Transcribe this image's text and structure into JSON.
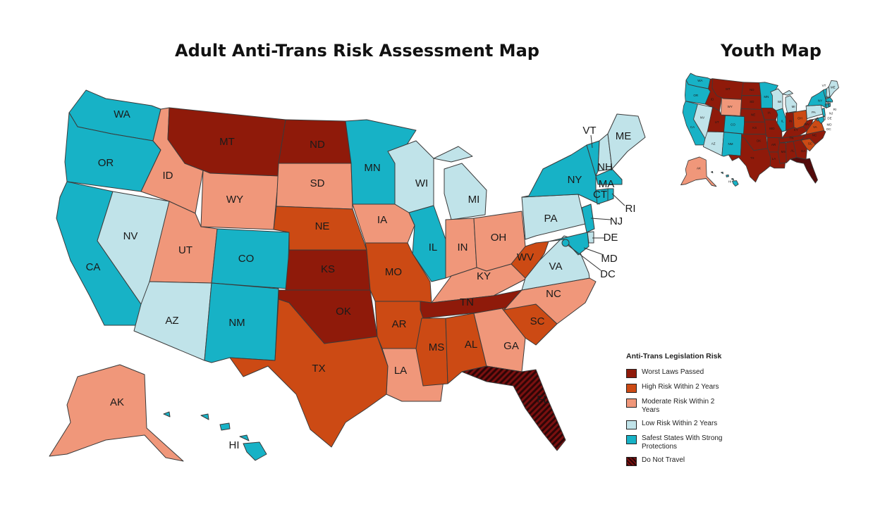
{
  "titles": {
    "main": "Adult Anti-Trans Risk Assessment Map",
    "youth": "Youth Map"
  },
  "colors": {
    "worst": "#8f1a0a",
    "high": "#cc4a14",
    "moderate": "#f0977a",
    "low": "#c0e3e9",
    "safest": "#17b2c6",
    "do_not_travel": "#3a0909",
    "border": "#3a3a3a"
  },
  "legend": {
    "title": "Anti-Trans Legislation Risk",
    "items": [
      {
        "label": "Worst Laws Passed",
        "category": "worst"
      },
      {
        "label": "High Risk Within 2 Years",
        "category": "high"
      },
      {
        "label": "Moderate Risk Within 2 Years",
        "category": "moderate"
      },
      {
        "label": "Low Risk Within 2 Years",
        "category": "low"
      },
      {
        "label": "Safest States With Strong Protections",
        "category": "safest"
      },
      {
        "label": "Do Not Travel",
        "category": "do_not_travel"
      }
    ]
  },
  "adult_map": {
    "states": [
      {
        "abbr": "WA",
        "category": "safest"
      },
      {
        "abbr": "OR",
        "category": "safest"
      },
      {
        "abbr": "CA",
        "category": "safest"
      },
      {
        "abbr": "NV",
        "category": "low"
      },
      {
        "abbr": "ID",
        "category": "moderate"
      },
      {
        "abbr": "MT",
        "category": "worst"
      },
      {
        "abbr": "WY",
        "category": "moderate"
      },
      {
        "abbr": "UT",
        "category": "moderate"
      },
      {
        "abbr": "CO",
        "category": "safest"
      },
      {
        "abbr": "AZ",
        "category": "low"
      },
      {
        "abbr": "NM",
        "category": "safest"
      },
      {
        "abbr": "ND",
        "category": "worst"
      },
      {
        "abbr": "SD",
        "category": "moderate"
      },
      {
        "abbr": "NE",
        "category": "high"
      },
      {
        "abbr": "KS",
        "category": "worst"
      },
      {
        "abbr": "OK",
        "category": "worst"
      },
      {
        "abbr": "TX",
        "category": "high"
      },
      {
        "abbr": "MN",
        "category": "safest"
      },
      {
        "abbr": "IA",
        "category": "moderate"
      },
      {
        "abbr": "MO",
        "category": "high"
      },
      {
        "abbr": "AR",
        "category": "high"
      },
      {
        "abbr": "LA",
        "category": "moderate"
      },
      {
        "abbr": "WI",
        "category": "low"
      },
      {
        "abbr": "IL",
        "category": "safest"
      },
      {
        "abbr": "MI",
        "category": "low"
      },
      {
        "abbr": "IN",
        "category": "moderate"
      },
      {
        "abbr": "OH",
        "category": "moderate"
      },
      {
        "abbr": "KY",
        "category": "moderate"
      },
      {
        "abbr": "TN",
        "category": "worst"
      },
      {
        "abbr": "MS",
        "category": "high"
      },
      {
        "abbr": "AL",
        "category": "high"
      },
      {
        "abbr": "GA",
        "category": "moderate"
      },
      {
        "abbr": "FL",
        "category": "do_not_travel"
      },
      {
        "abbr": "SC",
        "category": "high"
      },
      {
        "abbr": "NC",
        "category": "moderate"
      },
      {
        "abbr": "VA",
        "category": "low"
      },
      {
        "abbr": "WV",
        "category": "high"
      },
      {
        "abbr": "PA",
        "category": "low"
      },
      {
        "abbr": "NY",
        "category": "safest"
      },
      {
        "abbr": "VT",
        "category": "safest"
      },
      {
        "abbr": "NH",
        "category": "low"
      },
      {
        "abbr": "ME",
        "category": "low"
      },
      {
        "abbr": "MA",
        "category": "safest"
      },
      {
        "abbr": "CT",
        "category": "safest"
      },
      {
        "abbr": "RI",
        "category": "safest"
      },
      {
        "abbr": "NJ",
        "category": "safest"
      },
      {
        "abbr": "DE",
        "category": "low"
      },
      {
        "abbr": "MD",
        "category": "safest"
      },
      {
        "abbr": "DC",
        "category": "safest"
      },
      {
        "abbr": "AK",
        "category": "moderate"
      },
      {
        "abbr": "HI",
        "category": "safest"
      }
    ]
  },
  "youth_map": {
    "states": [
      {
        "abbr": "WA",
        "category": "safest"
      },
      {
        "abbr": "OR",
        "category": "safest"
      },
      {
        "abbr": "CA",
        "category": "safest"
      },
      {
        "abbr": "NV",
        "category": "low"
      },
      {
        "abbr": "ID",
        "category": "worst"
      },
      {
        "abbr": "MT",
        "category": "worst"
      },
      {
        "abbr": "WY",
        "category": "moderate"
      },
      {
        "abbr": "UT",
        "category": "worst"
      },
      {
        "abbr": "CO",
        "category": "safest"
      },
      {
        "abbr": "AZ",
        "category": "low"
      },
      {
        "abbr": "NM",
        "category": "safest"
      },
      {
        "abbr": "ND",
        "category": "worst"
      },
      {
        "abbr": "SD",
        "category": "worst"
      },
      {
        "abbr": "NE",
        "category": "worst"
      },
      {
        "abbr": "KS",
        "category": "worst"
      },
      {
        "abbr": "OK",
        "category": "worst"
      },
      {
        "abbr": "TX",
        "category": "worst"
      },
      {
        "abbr": "MN",
        "category": "safest"
      },
      {
        "abbr": "IA",
        "category": "worst"
      },
      {
        "abbr": "MO",
        "category": "worst"
      },
      {
        "abbr": "AR",
        "category": "worst"
      },
      {
        "abbr": "LA",
        "category": "worst"
      },
      {
        "abbr": "WI",
        "category": "low"
      },
      {
        "abbr": "IL",
        "category": "safest"
      },
      {
        "abbr": "MI",
        "category": "low"
      },
      {
        "abbr": "IN",
        "category": "worst"
      },
      {
        "abbr": "OH",
        "category": "high"
      },
      {
        "abbr": "KY",
        "category": "worst"
      },
      {
        "abbr": "TN",
        "category": "worst"
      },
      {
        "abbr": "MS",
        "category": "worst"
      },
      {
        "abbr": "AL",
        "category": "worst"
      },
      {
        "abbr": "GA",
        "category": "worst"
      },
      {
        "abbr": "FL",
        "category": "do_not_travel"
      },
      {
        "abbr": "SC",
        "category": "high"
      },
      {
        "abbr": "NC",
        "category": "worst"
      },
      {
        "abbr": "VA",
        "category": "high"
      },
      {
        "abbr": "WV",
        "category": "worst"
      },
      {
        "abbr": "PA",
        "category": "low"
      },
      {
        "abbr": "NY",
        "category": "safest"
      },
      {
        "abbr": "VT",
        "category": "safest"
      },
      {
        "abbr": "NH",
        "category": "low"
      },
      {
        "abbr": "ME",
        "category": "low"
      },
      {
        "abbr": "MA",
        "category": "safest"
      },
      {
        "abbr": "CT",
        "category": "safest"
      },
      {
        "abbr": "RI",
        "category": "safest"
      },
      {
        "abbr": "NJ",
        "category": "safest"
      },
      {
        "abbr": "DE",
        "category": "low"
      },
      {
        "abbr": "MD",
        "category": "safest"
      },
      {
        "abbr": "DC",
        "category": "safest"
      },
      {
        "abbr": "AK",
        "category": "moderate"
      },
      {
        "abbr": "HI",
        "category": "safest"
      }
    ]
  }
}
